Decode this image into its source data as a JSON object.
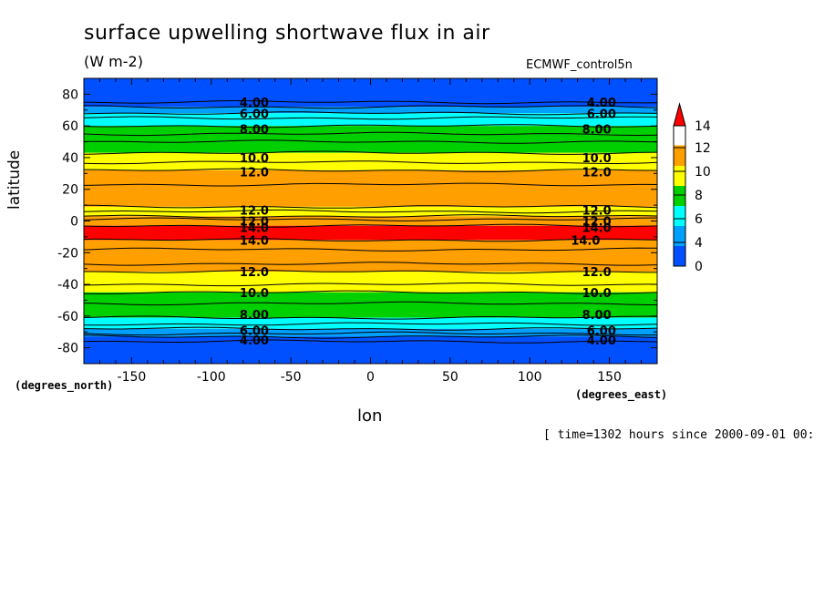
{
  "chart_data": {
    "type": "heatmap",
    "title": "surface upwelling shortwave flux in air",
    "units": "(W m-2)",
    "source": "ECMWF_control5n",
    "xlabel": "lon",
    "ylabel": "latitude",
    "x_unit_note": "(degrees_east)",
    "y_unit_note": "(degrees_north)",
    "time_note": "[ time=1302 hours since 2000-09-01 00:",
    "xlim": [
      -180,
      180
    ],
    "ylim": [
      -90,
      90
    ],
    "x_ticks": [
      -150,
      -100,
      -50,
      0,
      50,
      100,
      150
    ],
    "y_ticks": [
      80,
      60,
      40,
      20,
      0,
      -20,
      -40,
      -60,
      -80
    ],
    "x_tick_labels": [
      "-150",
      "-100",
      "-50",
      "0",
      "50",
      "100",
      "150"
    ],
    "y_tick_labels": [
      "80",
      "60",
      "40",
      "20",
      "0",
      "-20",
      "-40",
      "-60",
      "-80"
    ],
    "colorbar": {
      "levels": [
        0,
        2,
        4,
        6,
        8,
        10,
        12,
        14
      ],
      "labels": [
        "0",
        "4",
        "6",
        "8",
        "10",
        "12",
        "14"
      ],
      "colors": [
        "#0050ff",
        "#00a0ff",
        "#00ffff",
        "#00d000",
        "#ffff00",
        "#ffa000",
        "#ff0000"
      ],
      "extend": "max"
    },
    "bands": [
      {
        "lat_top": 90,
        "lat_bot": 72,
        "color": "#0050ff"
      },
      {
        "lat_top": 72,
        "lat_bot": 68,
        "color": "#00a0ff"
      },
      {
        "lat_top": 68,
        "lat_bot": 60,
        "color": "#00ffff"
      },
      {
        "lat_top": 60,
        "lat_bot": 43,
        "color": "#00d000"
      },
      {
        "lat_top": 43,
        "lat_bot": 32,
        "color": "#ffff00"
      },
      {
        "lat_top": 32,
        "lat_bot": 9,
        "color": "#ffa000"
      },
      {
        "lat_top": 9,
        "lat_bot": 3,
        "color": "#ffff00"
      },
      {
        "lat_top": 3,
        "lat_bot": -3,
        "color": "#ffa000"
      },
      {
        "lat_top": -3,
        "lat_bot": -12,
        "color": "#ff0000"
      },
      {
        "lat_top": -12,
        "lat_bot": -32,
        "color": "#ffa000"
      },
      {
        "lat_top": -32,
        "lat_bot": -45,
        "color": "#ffff00"
      },
      {
        "lat_top": -45,
        "lat_bot": -61,
        "color": "#00d000"
      },
      {
        "lat_top": -61,
        "lat_bot": -68,
        "color": "#00ffff"
      },
      {
        "lat_top": -68,
        "lat_bot": -73,
        "color": "#00a0ff"
      },
      {
        "lat_top": -73,
        "lat_bot": -90,
        "color": "#0050ff"
      }
    ],
    "contour_lines_lat": [
      75,
      72,
      68,
      65,
      60,
      55,
      50,
      43,
      37,
      32,
      23,
      9,
      6,
      3,
      1,
      -3,
      -12,
      -18,
      -27,
      -32,
      -40,
      -45,
      -52,
      -61,
      -65,
      -68,
      -71,
      -73,
      -76
    ],
    "contour_labels": [
      {
        "text": "4.00",
        "lat": 75,
        "lon": [
          -73,
          145
        ]
      },
      {
        "text": "6.00",
        "lat": 68,
        "lon": [
          -73,
          145
        ]
      },
      {
        "text": "8.00",
        "lat": 58,
        "lon": [
          -73,
          142
        ]
      },
      {
        "text": "10.0",
        "lat": 40,
        "lon": [
          -73,
          142
        ]
      },
      {
        "text": "12.0",
        "lat": 31,
        "lon": [
          -73,
          142
        ]
      },
      {
        "text": "12.0",
        "lat": 7,
        "lon": [
          -73,
          142
        ]
      },
      {
        "text": "12.0",
        "lat": 0,
        "lon": [
          -73,
          142
        ]
      },
      {
        "text": "14.0",
        "lat": -4,
        "lon": [
          -73,
          142
        ]
      },
      {
        "text": "14.0",
        "lat": -12,
        "lon": [
          -73,
          135
        ]
      },
      {
        "text": "12.0",
        "lat": -32,
        "lon": [
          -73,
          142
        ]
      },
      {
        "text": "10.0",
        "lat": -45,
        "lon": [
          -73,
          142
        ]
      },
      {
        "text": "8.00",
        "lat": -59,
        "lon": [
          -73,
          142
        ]
      },
      {
        "text": "6.00",
        "lat": -69,
        "lon": [
          -73,
          145
        ]
      },
      {
        "text": "4.00",
        "lat": -75,
        "lon": [
          -73,
          145
        ]
      }
    ]
  }
}
